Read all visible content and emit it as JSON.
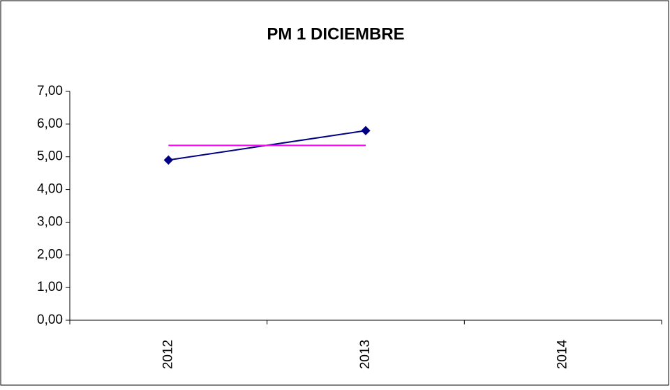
{
  "chart_data": {
    "type": "line",
    "title": "PM 1 DICIEMBRE",
    "categories": [
      "2012",
      "2013",
      "2014"
    ],
    "series": [
      {
        "color": "#000080",
        "marker": "diamond",
        "values": [
          4.9,
          5.8,
          null
        ]
      },
      {
        "color": "#ff00ff",
        "values": [
          5.35,
          5.35,
          null
        ]
      }
    ],
    "ylim": [
      0,
      7
    ],
    "yticks": [
      {
        "value": 0,
        "label": "0,00"
      },
      {
        "value": 1,
        "label": "1,00"
      },
      {
        "value": 2,
        "label": "2,00"
      },
      {
        "value": 3,
        "label": "3,00"
      },
      {
        "value": 4,
        "label": "4,00"
      },
      {
        "value": 5,
        "label": "5,00"
      },
      {
        "value": 6,
        "label": "6,00"
      },
      {
        "value": 7,
        "label": "7,00"
      }
    ],
    "grid": false
  }
}
